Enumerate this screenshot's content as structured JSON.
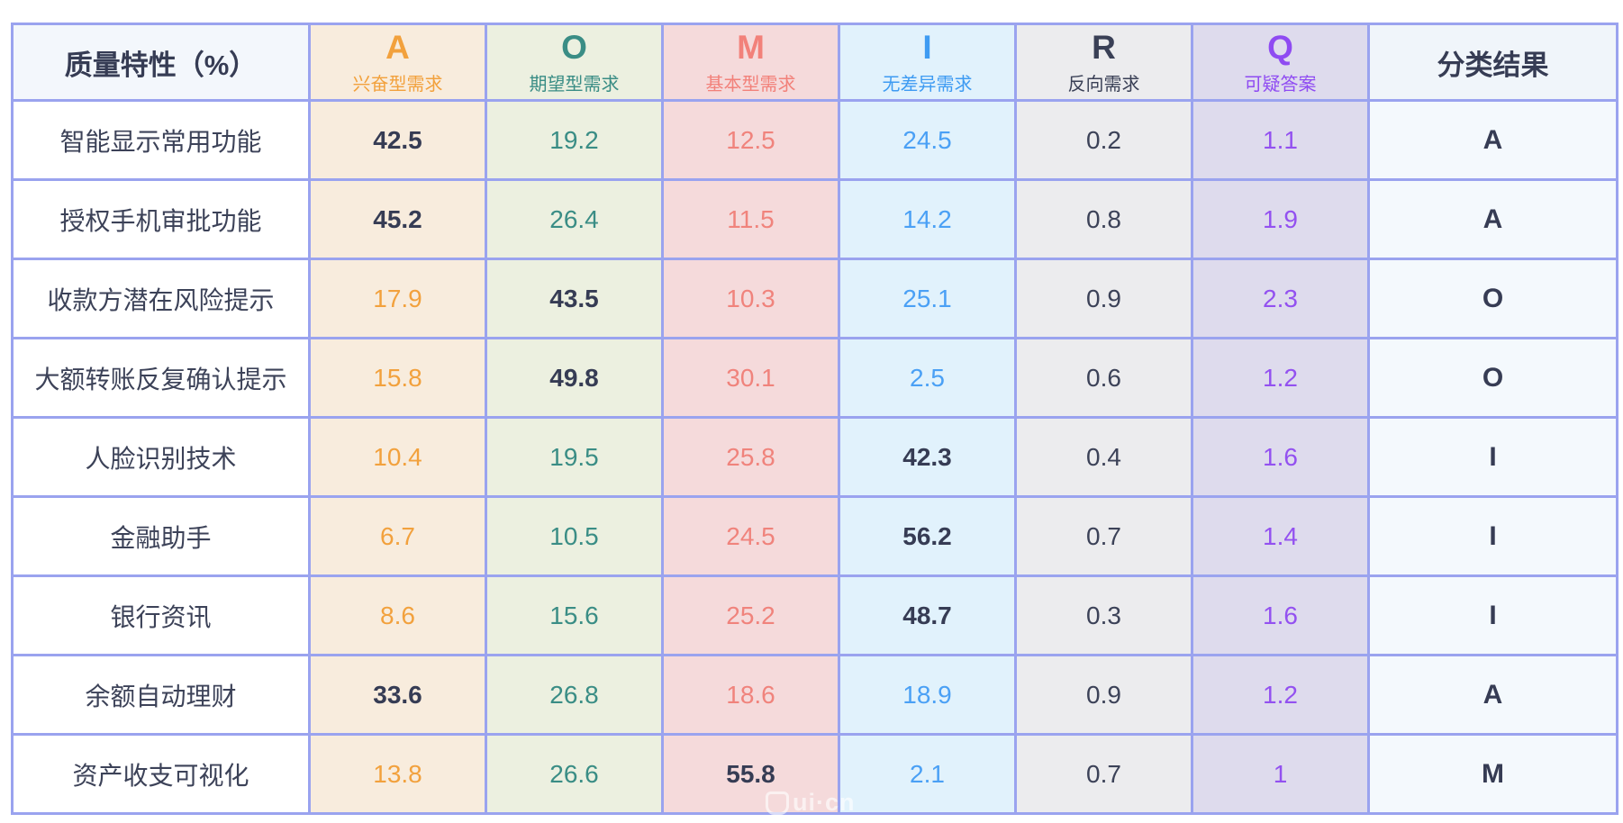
{
  "table": {
    "corner_header": "质量特性（%）",
    "result_header": "分类结果",
    "columns": [
      {
        "key": "A",
        "letter": "A",
        "label": "兴奋型需求",
        "accent": "#F2A13D",
        "value_color": "#F2A13D",
        "bg": "#F8ECDD"
      },
      {
        "key": "O",
        "letter": "O",
        "label": "期望型需求",
        "accent": "#3A8D85",
        "value_color": "#3A8D85",
        "bg": "#ECF0E0"
      },
      {
        "key": "M",
        "letter": "M",
        "label": "基本型需求",
        "accent": "#F2817A",
        "value_color": "#F0837C",
        "bg": "#F5DADB"
      },
      {
        "key": "I",
        "letter": "I",
        "label": "无差异需求",
        "accent": "#3E9BF2",
        "value_color": "#4AA0F5",
        "bg": "#E1F2FC"
      },
      {
        "key": "R",
        "letter": "R",
        "label": "反向需求",
        "accent": "#3A4056",
        "value_color": "#3C4258",
        "bg": "#ECECEE"
      },
      {
        "key": "Q",
        "letter": "Q",
        "label": "可疑答案",
        "accent": "#8F4BF2",
        "value_color": "#9351F0",
        "bg": "#DEDBED"
      }
    ],
    "rows": [
      {
        "feature": "智能显示常用功能",
        "values": {
          "A": "42.5",
          "O": "19.2",
          "M": "12.5",
          "I": "24.5",
          "R": "0.2",
          "Q": "1.1"
        },
        "max": "A",
        "result": "A"
      },
      {
        "feature": "授权手机审批功能",
        "values": {
          "A": "45.2",
          "O": "26.4",
          "M": "11.5",
          "I": "14.2",
          "R": "0.8",
          "Q": "1.9"
        },
        "max": "A",
        "result": "A"
      },
      {
        "feature": "收款方潜在风险提示",
        "values": {
          "A": "17.9",
          "O": "43.5",
          "M": "10.3",
          "I": "25.1",
          "R": "0.9",
          "Q": "2.3"
        },
        "max": "O",
        "result": "O"
      },
      {
        "feature": "大额转账反复确认提示",
        "values": {
          "A": "15.8",
          "O": "49.8",
          "M": "30.1",
          "I": "2.5",
          "R": "0.6",
          "Q": "1.2"
        },
        "max": "O",
        "result": "O"
      },
      {
        "feature": "人脸识别技术",
        "values": {
          "A": "10.4",
          "O": "19.5",
          "M": "25.8",
          "I": "42.3",
          "R": "0.4",
          "Q": "1.6"
        },
        "max": "I",
        "result": "I"
      },
      {
        "feature": "金融助手",
        "values": {
          "A": "6.7",
          "O": "10.5",
          "M": "24.5",
          "I": "56.2",
          "R": "0.7",
          "Q": "1.4"
        },
        "max": "I",
        "result": "I"
      },
      {
        "feature": "银行资讯",
        "values": {
          "A": "8.6",
          "O": "15.6",
          "M": "25.2",
          "I": "48.7",
          "R": "0.3",
          "Q": "1.6"
        },
        "max": "I",
        "result": "I"
      },
      {
        "feature": "余额自动理财",
        "values": {
          "A": "33.6",
          "O": "26.8",
          "M": "18.6",
          "I": "18.9",
          "R": "0.9",
          "Q": "1.2"
        },
        "max": "A",
        "result": "A"
      },
      {
        "feature": "资产收支可视化",
        "values": {
          "A": "13.8",
          "O": "26.6",
          "M": "55.8",
          "I": "2.1",
          "R": "0.7",
          "Q": "1"
        },
        "max": "M",
        "result": "M"
      }
    ]
  },
  "watermark": {
    "text": "ui·cn"
  },
  "colors": {
    "border": "#9AA3EF",
    "dark_text": "#363C54",
    "corner_bg": "#F3F7FC",
    "result_header_bg": "#F0F5FA",
    "result_body_bg": "#F4F9FD"
  }
}
